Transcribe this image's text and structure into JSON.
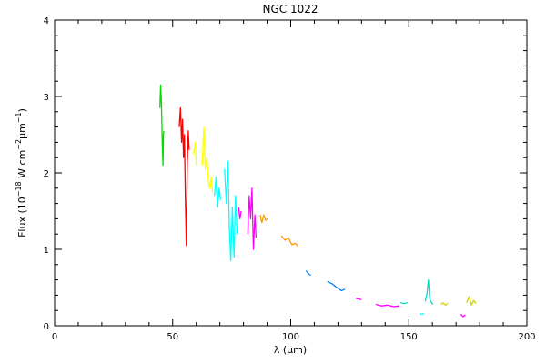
{
  "chart_data": {
    "type": "line",
    "title": "NGC 1022",
    "xlabel": "λ (μm)",
    "ylabel": {
      "prefix": "Flux (10",
      "exp1": "−18",
      "mid1": " W cm",
      "exp2": "−2",
      "mid2": "μm",
      "exp3": "−1",
      "suffix": ")"
    },
    "xlim": [
      0,
      200
    ],
    "ylim": [
      0,
      4
    ],
    "x_ticks": [
      0,
      50,
      100,
      150,
      200
    ],
    "y_ticks": [
      0,
      1,
      2,
      3,
      4
    ],
    "x_tick_labels": [
      "0",
      "50",
      "100",
      "150",
      "200"
    ],
    "y_tick_labels": [
      "0",
      "1",
      "2",
      "3",
      "4"
    ],
    "grid": false,
    "series": [
      {
        "color": "#00dd00",
        "x": [
          44.6,
          44.9,
          45.2,
          45.4,
          45.6,
          45.9,
          46.1,
          46.3
        ],
        "y": [
          2.85,
          3.15,
          2.95,
          2.7,
          2.4,
          2.1,
          2.5,
          2.55
        ]
      },
      {
        "color": "#ff0000",
        "x": [
          52.8,
          53.3,
          53.8,
          54.2,
          54.6,
          55.0,
          55.4,
          55.8,
          56.2,
          56.6,
          57.0
        ],
        "y": [
          2.6,
          2.85,
          2.4,
          2.7,
          2.2,
          2.5,
          1.6,
          1.05,
          2.1,
          2.55,
          2.3
        ]
      },
      {
        "color": "#ffff00",
        "x": [
          58.9,
          59.5,
          60.0
        ],
        "y": [
          2.25,
          2.4,
          2.1
        ]
      },
      {
        "color": "#ffff00",
        "x": [
          62.5,
          63.2,
          63.8,
          64.5,
          65.1,
          65.7,
          66.3,
          66.9
        ],
        "y": [
          2.1,
          2.6,
          2.05,
          2.2,
          1.9,
          1.8,
          1.95,
          1.75
        ]
      },
      {
        "color": "#00ffff",
        "x": [
          67.7,
          68.4,
          69.0,
          69.7,
          70.3
        ],
        "y": [
          1.7,
          1.95,
          1.55,
          1.8,
          1.65
        ]
      },
      {
        "color": "#00ffff",
        "x": [
          72.0,
          72.7,
          73.4,
          74.0,
          74.6,
          75.3,
          76.0,
          76.6,
          77.3
        ],
        "y": [
          2.05,
          1.6,
          2.15,
          1.3,
          0.85,
          1.55,
          0.9,
          1.7,
          1.2
        ]
      },
      {
        "color": "#ff00ff",
        "x": [
          77.9,
          78.5,
          79.0
        ],
        "y": [
          1.55,
          1.4,
          1.5
        ]
      },
      {
        "color": "#ff00ff",
        "x": [
          81.8,
          82.4,
          83.0,
          83.6,
          84.2,
          84.8,
          85.3
        ],
        "y": [
          1.2,
          1.7,
          1.4,
          1.8,
          1.0,
          1.45,
          1.15
        ]
      },
      {
        "color": "#ff9900",
        "x": [
          87.0,
          87.8,
          88.6,
          89.4,
          90.2
        ],
        "y": [
          1.45,
          1.35,
          1.45,
          1.38,
          1.4
        ]
      },
      {
        "color": "#ff9900",
        "x": [
          96.0,
          97.5,
          99.0,
          100.5,
          102.0,
          103.0
        ],
        "y": [
          1.18,
          1.12,
          1.15,
          1.06,
          1.08,
          1.04
        ]
      },
      {
        "color": "#0080ff",
        "x": [
          106.5,
          107.5,
          108.5
        ],
        "y": [
          0.72,
          0.68,
          0.66
        ]
      },
      {
        "color": "#0080ff",
        "x": [
          115.5,
          117.5,
          119.5,
          121.5,
          123.0
        ],
        "y": [
          0.58,
          0.55,
          0.5,
          0.46,
          0.48
        ]
      },
      {
        "color": "#ff00ff",
        "x": [
          127.5,
          128.8,
          130.0
        ],
        "y": [
          0.36,
          0.35,
          0.34
        ]
      },
      {
        "color": "#ff00ff",
        "x": [
          136.0,
          138.5,
          141.0,
          143.5,
          146.0
        ],
        "y": [
          0.28,
          0.26,
          0.27,
          0.25,
          0.26
        ]
      },
      {
        "color": "#00ddcc",
        "x": [
          146.5,
          148.0,
          149.5
        ],
        "y": [
          0.3,
          0.29,
          0.3
        ]
      },
      {
        "color": "#00ffff",
        "x": [
          154.5,
          155.5,
          156.5
        ],
        "y": [
          0.16,
          0.15,
          0.16
        ]
      },
      {
        "color": "#00ddcc",
        "x": [
          157.0,
          157.7,
          158.3,
          158.9,
          159.6,
          160.3
        ],
        "y": [
          0.32,
          0.42,
          0.6,
          0.35,
          0.3,
          0.28
        ]
      },
      {
        "color": "#d4d400",
        "x": [
          163.5,
          164.5,
          165.5,
          166.5
        ],
        "y": [
          0.28,
          0.3,
          0.27,
          0.29
        ]
      },
      {
        "color": "#ff00ff",
        "x": [
          172.0,
          173.0,
          174.0
        ],
        "y": [
          0.15,
          0.12,
          0.14
        ]
      },
      {
        "color": "#d4d400",
        "x": [
          174.5,
          175.5,
          176.5,
          177.5,
          178.5
        ],
        "y": [
          0.3,
          0.38,
          0.27,
          0.33,
          0.29
        ]
      }
    ]
  }
}
